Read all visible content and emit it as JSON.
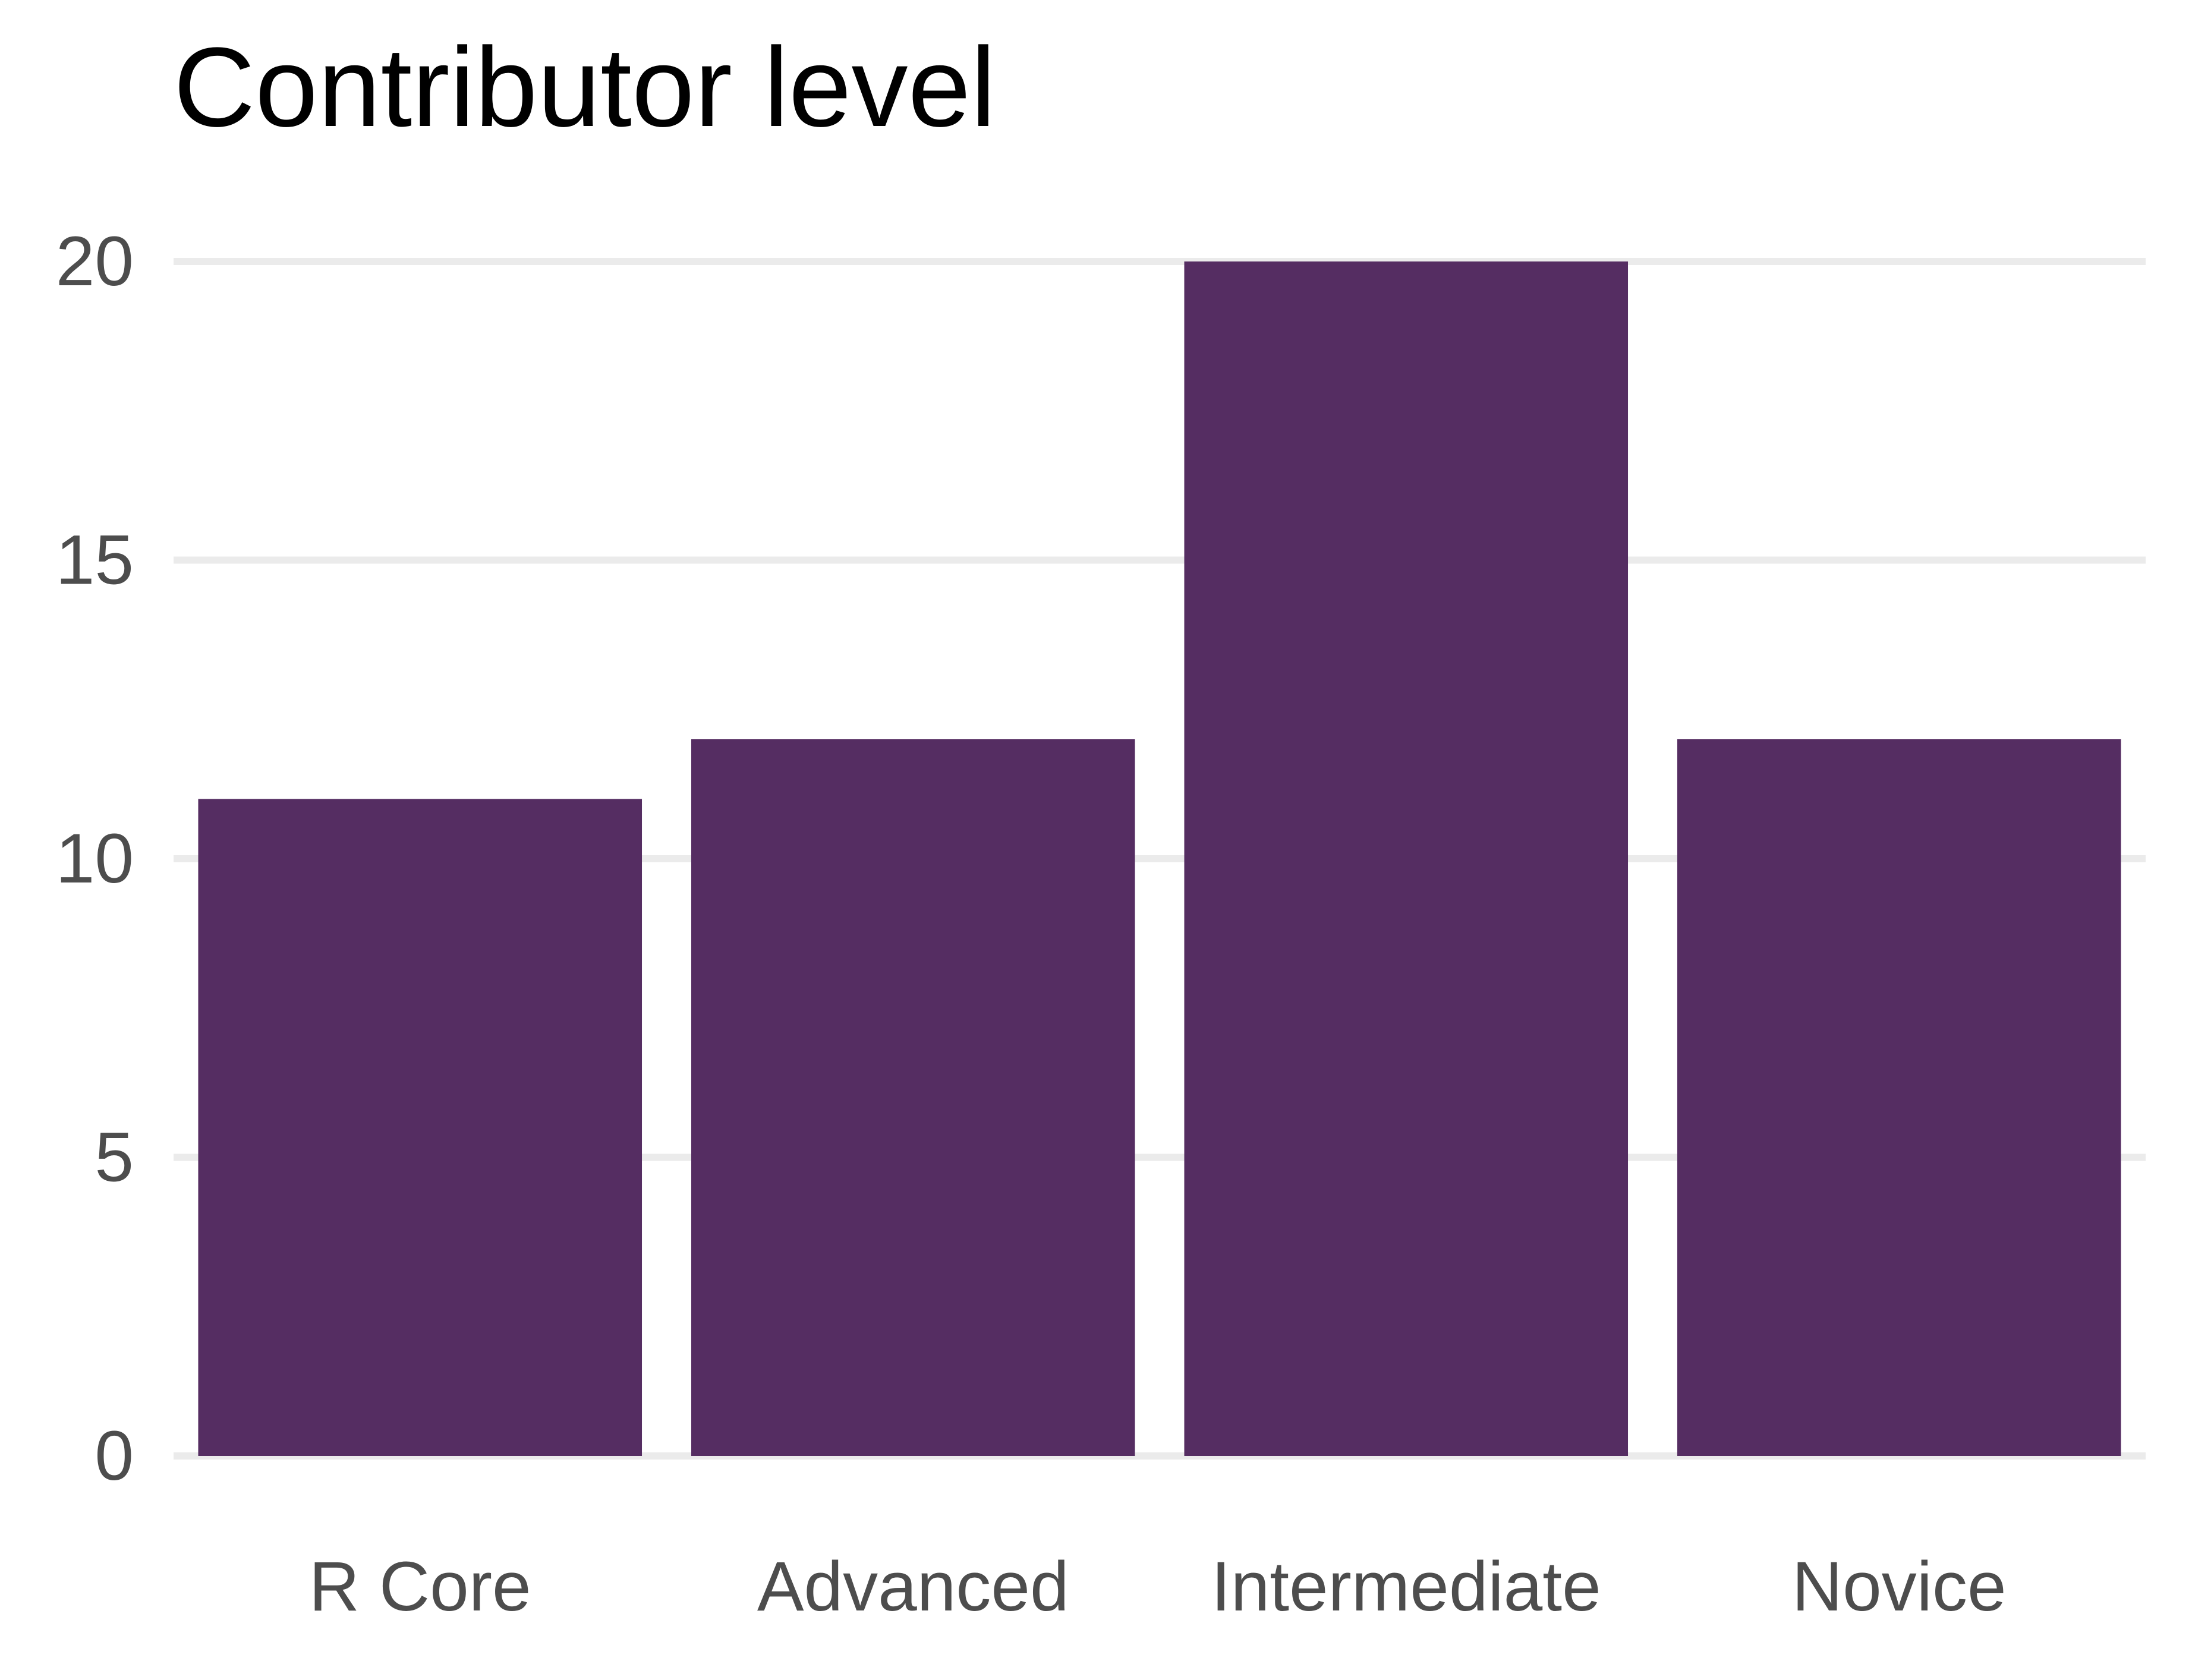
{
  "chart_data": {
    "type": "bar",
    "title": "Contributor level",
    "xlabel": "",
    "ylabel": "",
    "categories": [
      "R Core",
      "Advanced",
      "Intermediate",
      "Novice"
    ],
    "values": [
      11,
      12,
      20,
      12
    ],
    "ylim": [
      0,
      20
    ],
    "yticks": [
      0,
      5,
      10,
      15,
      20
    ],
    "grid": true,
    "legend": "none",
    "colors": {
      "bar": "#552D62",
      "grid": "#EBEBEB",
      "tick_label": "#4D4D4D",
      "title": "#000000"
    }
  }
}
